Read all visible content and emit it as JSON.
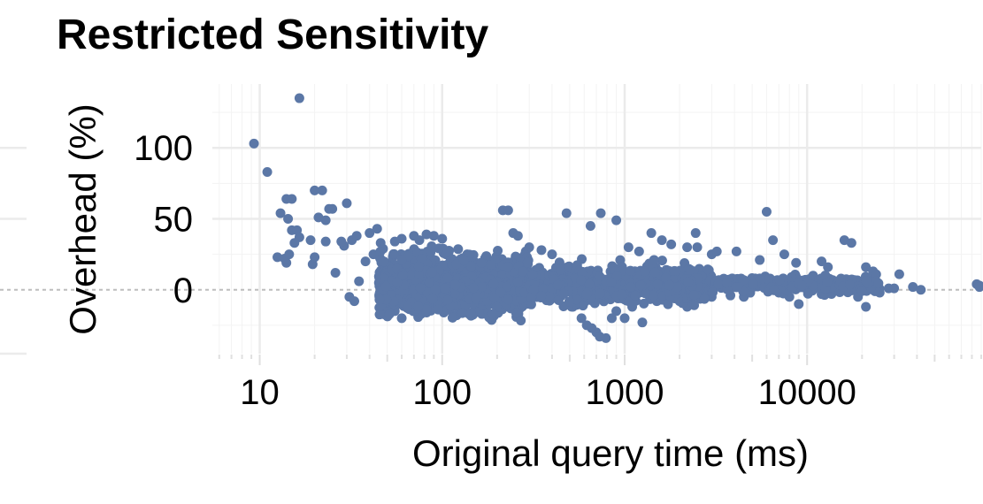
{
  "chart_data": {
    "type": "scatter",
    "title": "Restricted Sensitivity",
    "xlabel": "Original query time (ms)",
    "ylabel": "Overhead (%)",
    "x_scale": "log10",
    "xlim": [
      5.5,
      90000
    ],
    "ylim": [
      -45,
      145
    ],
    "x_ticks": [
      10,
      100,
      1000,
      10000
    ],
    "x_tick_labels": [
      "10",
      "100",
      "1000",
      "10000"
    ],
    "y_ticks": [
      0,
      50,
      100
    ],
    "y_tick_labels": [
      "0",
      "50",
      "100"
    ],
    "reference_line": 0,
    "grid": true,
    "point_color": "#5b77a6",
    "points": [
      [
        9.3,
        103
      ],
      [
        11,
        83
      ],
      [
        16.5,
        135
      ],
      [
        13,
        54
      ],
      [
        14,
        64
      ],
      [
        15,
        64
      ],
      [
        14.3,
        50
      ],
      [
        15,
        42
      ],
      [
        16,
        42
      ],
      [
        16.5,
        37
      ],
      [
        15.5,
        33
      ],
      [
        20,
        70
      ],
      [
        22,
        70
      ],
      [
        21,
        51
      ],
      [
        23,
        49
      ],
      [
        24,
        57
      ],
      [
        25,
        57
      ],
      [
        19,
        35
      ],
      [
        23,
        34
      ],
      [
        12.5,
        23
      ],
      [
        14,
        19
      ],
      [
        13.7,
        22
      ],
      [
        14.5,
        25
      ],
      [
        19.5,
        18
      ],
      [
        20,
        23
      ],
      [
        26,
        12
      ],
      [
        29,
        31
      ],
      [
        30,
        61
      ],
      [
        28,
        34
      ],
      [
        32,
        35
      ],
      [
        34,
        38
      ],
      [
        40,
        40
      ],
      [
        44,
        43
      ],
      [
        31,
        -5
      ],
      [
        33,
        -8
      ],
      [
        35,
        6
      ],
      [
        38,
        20
      ],
      [
        42,
        25
      ],
      [
        46,
        33
      ],
      [
        55,
        34
      ],
      [
        60,
        36
      ],
      [
        70,
        38
      ],
      [
        75,
        35
      ],
      [
        82,
        39
      ],
      [
        90,
        38
      ],
      [
        100,
        36
      ],
      [
        55,
        -15
      ],
      [
        60,
        -20
      ],
      [
        65,
        -10
      ],
      [
        80,
        -13
      ],
      [
        95,
        -12
      ],
      [
        110,
        -14
      ],
      [
        120,
        -18
      ],
      [
        150,
        -16
      ],
      [
        165,
        -17
      ],
      [
        200,
        -14
      ],
      [
        215,
        56
      ],
      [
        230,
        56
      ],
      [
        245,
        40
      ],
      [
        260,
        38
      ],
      [
        300,
        30
      ],
      [
        350,
        28
      ],
      [
        400,
        25
      ],
      [
        480,
        54
      ],
      [
        650,
        45
      ],
      [
        740,
        54
      ],
      [
        900,
        49
      ],
      [
        1050,
        30
      ],
      [
        1200,
        27
      ],
      [
        1400,
        40
      ],
      [
        1600,
        35
      ],
      [
        1800,
        32
      ],
      [
        2200,
        30
      ],
      [
        2450,
        40
      ],
      [
        2500,
        30
      ],
      [
        3000,
        25
      ],
      [
        3200,
        27
      ],
      [
        4100,
        27
      ],
      [
        5500,
        21
      ],
      [
        6000,
        55
      ],
      [
        6500,
        35
      ],
      [
        7500,
        25
      ],
      [
        8700,
        19
      ],
      [
        12000,
        20
      ],
      [
        13000,
        16
      ],
      [
        16000,
        35
      ],
      [
        17500,
        33
      ],
      [
        21000,
        16
      ],
      [
        23000,
        13
      ],
      [
        32000,
        11
      ],
      [
        2000,
        -8
      ],
      [
        2200,
        -12
      ],
      [
        1250,
        -23
      ],
      [
        1000,
        -20
      ],
      [
        520,
        -12
      ],
      [
        580,
        -20
      ],
      [
        620,
        -25
      ],
      [
        700,
        -30
      ],
      [
        790,
        -34
      ],
      [
        730,
        -33
      ],
      [
        660,
        -27
      ],
      [
        850,
        -20
      ],
      [
        900,
        -15
      ],
      [
        1100,
        -12
      ],
      [
        1500,
        -8
      ],
      [
        3000,
        -5
      ],
      [
        4500,
        -5
      ],
      [
        9000,
        -10
      ],
      [
        8000,
        -5
      ],
      [
        12000,
        -3
      ],
      [
        19000,
        -5
      ],
      [
        21000,
        -12
      ],
      [
        25000,
        -2
      ],
      [
        28000,
        1
      ],
      [
        30000,
        1
      ],
      [
        38000,
        2
      ],
      [
        42000,
        0
      ],
      [
        85000,
        4
      ],
      [
        88000,
        3
      ],
      [
        88000,
        2
      ],
      [
        70,
        10
      ],
      [
        90,
        8
      ],
      [
        130,
        12
      ],
      [
        180,
        6
      ],
      [
        250,
        3
      ],
      [
        350,
        5
      ],
      [
        450,
        2
      ],
      [
        600,
        8
      ],
      [
        800,
        4
      ],
      [
        1200,
        3
      ],
      [
        1700,
        6
      ],
      [
        2500,
        2
      ],
      [
        3500,
        3
      ],
      [
        5000,
        2
      ],
      [
        6500,
        1
      ],
      [
        10000,
        2
      ],
      [
        14000,
        3
      ],
      [
        18000,
        1
      ],
      [
        22000,
        2
      ],
      [
        45,
        5
      ],
      [
        55,
        15
      ],
      [
        65,
        20
      ],
      [
        75,
        0
      ],
      [
        85,
        -5
      ],
      [
        105,
        25
      ],
      [
        115,
        -8
      ],
      [
        125,
        18
      ],
      [
        140,
        22
      ],
      [
        160,
        14
      ],
      [
        175,
        -4
      ],
      [
        190,
        10
      ],
      [
        210,
        20
      ],
      [
        240,
        -6
      ],
      [
        280,
        15
      ],
      [
        320,
        -3
      ],
      [
        380,
        10
      ],
      [
        420,
        -5
      ],
      [
        500,
        12
      ],
      [
        550,
        3
      ],
      [
        720,
        10
      ],
      [
        950,
        -6
      ],
      [
        1300,
        14
      ],
      [
        1900,
        -3
      ],
      [
        2800,
        8
      ],
      [
        3800,
        -4
      ],
      [
        5500,
        8
      ],
      [
        7000,
        -2
      ],
      [
        11000,
        5
      ],
      [
        15000,
        -1
      ]
    ]
  }
}
